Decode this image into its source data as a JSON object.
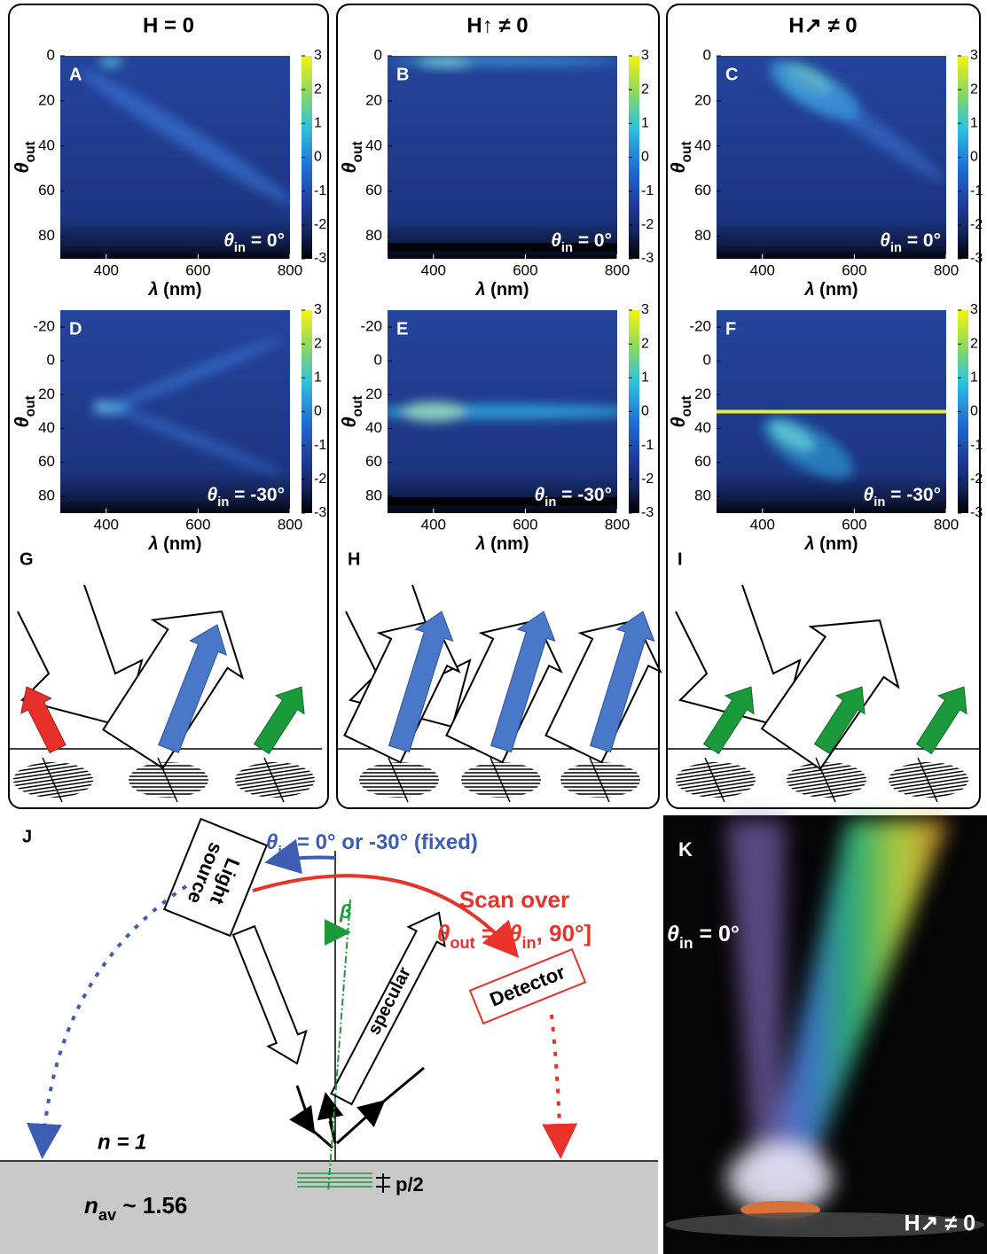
{
  "columns": [
    "H = 0",
    "H↑ ≠ 0",
    "H↗ ≠ 0"
  ],
  "chart_data": [
    {
      "type": "heatmap",
      "label": "A",
      "xlabel": {
        "symbol": "λ",
        "text": " (nm)"
      },
      "ylabel": {
        "symbol": "θ",
        "sub": "out"
      },
      "annotation": {
        "symbol": "θ",
        "sub": "in",
        "text": " = 0°"
      },
      "xlim": [
        300,
        800
      ],
      "xticks": [
        400,
        600,
        800
      ],
      "ylim": [
        90,
        0
      ],
      "yticks": [
        0,
        20,
        40,
        60,
        80
      ],
      "clim": [
        -3,
        3
      ],
      "cticks": [
        3,
        2,
        1,
        0,
        -1,
        -2,
        -3
      ]
    },
    {
      "type": "heatmap",
      "label": "B",
      "xlabel": {
        "symbol": "λ",
        "text": " (nm)"
      },
      "ylabel": {
        "symbol": "θ",
        "sub": "out"
      },
      "annotation": {
        "symbol": "θ",
        "sub": "in",
        "text": " = 0°"
      },
      "xlim": [
        300,
        800
      ],
      "xticks": [
        400,
        600,
        800
      ],
      "ylim": [
        90,
        0
      ],
      "yticks": [
        0,
        20,
        40,
        60,
        80
      ],
      "clim": [
        -3,
        3
      ],
      "cticks": [
        3,
        2,
        1,
        0,
        -1,
        -2,
        -3
      ]
    },
    {
      "type": "heatmap",
      "label": "C",
      "xlabel": {
        "symbol": "λ",
        "text": " (nm)"
      },
      "ylabel": {
        "symbol": "θ",
        "sub": "out"
      },
      "annotation": {
        "symbol": "θ",
        "sub": "in",
        "text": " = 0°"
      },
      "xlim": [
        300,
        800
      ],
      "xticks": [
        400,
        600,
        800
      ],
      "ylim": [
        90,
        0
      ],
      "yticks": [
        0,
        20,
        40,
        60,
        80
      ],
      "clim": [
        -3,
        3
      ],
      "cticks": [
        3,
        2,
        1,
        0,
        -1,
        -2,
        -3
      ]
    },
    {
      "type": "heatmap",
      "label": "D",
      "xlabel": {
        "symbol": "λ",
        "text": " (nm)"
      },
      "ylabel": {
        "symbol": "θ",
        "sub": "out"
      },
      "annotation": {
        "symbol": "θ",
        "sub": "in",
        "text": " = -30°"
      },
      "xlim": [
        300,
        800
      ],
      "xticks": [
        400,
        600,
        800
      ],
      "ylim": [
        90,
        -30
      ],
      "yticks": [
        -20,
        0,
        20,
        40,
        60,
        80
      ],
      "clim": [
        -3,
        3
      ],
      "cticks": [
        3,
        2,
        1,
        0,
        -1,
        -2,
        -3
      ]
    },
    {
      "type": "heatmap",
      "label": "E",
      "xlabel": {
        "symbol": "λ",
        "text": " (nm)"
      },
      "ylabel": {
        "symbol": "θ",
        "sub": "out"
      },
      "annotation": {
        "symbol": "θ",
        "sub": "in",
        "text": " = -30°"
      },
      "xlim": [
        300,
        800
      ],
      "xticks": [
        400,
        600,
        800
      ],
      "ylim": [
        90,
        -30
      ],
      "yticks": [
        -20,
        0,
        20,
        40,
        60,
        80
      ],
      "clim": [
        -3,
        3
      ],
      "cticks": [
        3,
        2,
        1,
        0,
        -1,
        -2,
        -3
      ]
    },
    {
      "type": "heatmap",
      "label": "F",
      "xlabel": {
        "symbol": "λ",
        "text": " (nm)"
      },
      "ylabel": {
        "symbol": "θ",
        "sub": "out"
      },
      "annotation": {
        "symbol": "θ",
        "sub": "in",
        "text": " = -30°"
      },
      "xlim": [
        300,
        800
      ],
      "xticks": [
        400,
        600,
        800
      ],
      "ylim": [
        90,
        -30
      ],
      "yticks": [
        -20,
        0,
        20,
        40,
        60,
        80
      ],
      "clim": [
        -3,
        3
      ],
      "cticks": [
        3,
        2,
        1,
        0,
        -1,
        -2,
        -3
      ]
    }
  ],
  "diagram_letters": [
    "G",
    "H",
    "I"
  ],
  "panel_j": {
    "label": "J",
    "theta_in": {
      "symbol": "θ",
      "sub": "in",
      "text": " = 0° or -30° (fixed)"
    },
    "light_source": [
      "Light",
      "source"
    ],
    "scan_over": "Scan over",
    "theta_out": {
      "symbol": "θ",
      "sub": "out",
      "text": " = [",
      "symbol2": "θ",
      "sub2": "in",
      "text2": ", 90°]"
    },
    "beta": "β",
    "specular": "specular",
    "detector": "Detector",
    "n1": "n = 1",
    "nav": {
      "symbol": "n",
      "sub": "av",
      "text": " ~ 1.56"
    },
    "pitch": "p/2"
  },
  "panel_k": {
    "label": "K",
    "theta_in": {
      "symbol": "θ",
      "sub": "in",
      "text": " = 0°"
    },
    "field": "H↗ ≠ 0"
  }
}
